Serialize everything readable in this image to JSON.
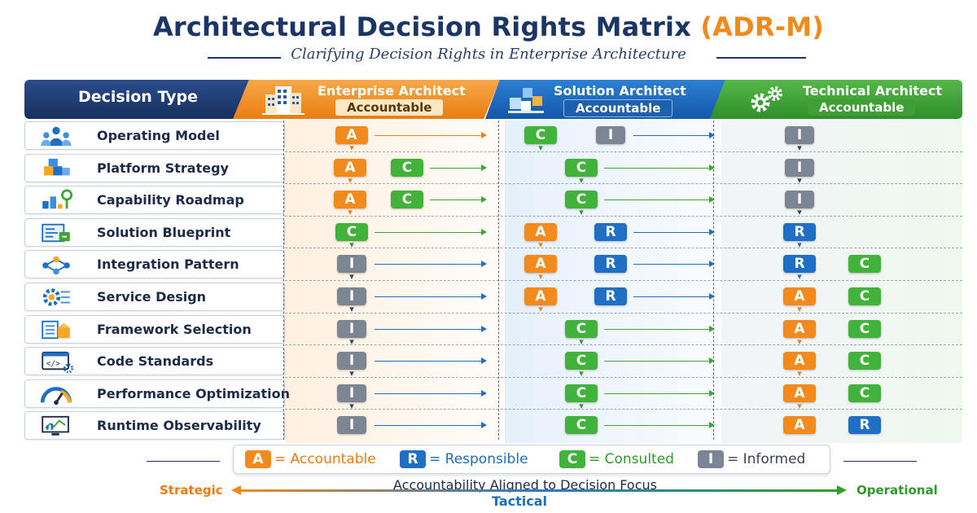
{
  "title": {
    "main": "Architectural Decision Rights Matrix",
    "acronym": "(ADR-M)"
  },
  "subtitle": "Clarifying Decision Rights in Enterprise Architecture",
  "header": {
    "decision_type": "Decision Type",
    "roles": [
      {
        "name": "Enterprise Architect",
        "tag": "Accountable",
        "icon": "office-building-icon",
        "color": "#f08a1c"
      },
      {
        "name": "Solution Architect",
        "tag": "Accountable",
        "icon": "blocks-icon",
        "color": "#1f6fc5"
      },
      {
        "name": "Technical Architect",
        "tag": "Accountable",
        "icon": "gears-icon",
        "color": "#3fa535"
      }
    ]
  },
  "rows": [
    {
      "label": "Operating Model",
      "icon": "people-network-icon",
      "cells": [
        [
          "A"
        ],
        [
          "C",
          "I"
        ],
        [
          "I"
        ]
      ]
    },
    {
      "label": "Platform Strategy",
      "icon": "cubes-icon",
      "cells": [
        [
          "A",
          "C"
        ],
        [
          "C"
        ],
        [
          "I"
        ]
      ]
    },
    {
      "label": "Capability Roadmap",
      "icon": "roadmap-pin-icon",
      "cells": [
        [
          "A",
          "C"
        ],
        [
          "C"
        ],
        [
          "I"
        ]
      ]
    },
    {
      "label": "Solution Blueprint",
      "icon": "blueprint-icon",
      "cells": [
        [
          "C"
        ],
        [
          "A",
          "R"
        ],
        [
          "R"
        ]
      ]
    },
    {
      "label": "Integration Pattern",
      "icon": "network-nodes-icon",
      "cells": [
        [
          "I"
        ],
        [
          "A",
          "R"
        ],
        [
          "R",
          "C"
        ]
      ]
    },
    {
      "label": "Service Design",
      "icon": "service-gear-icon",
      "cells": [
        [
          "I"
        ],
        [
          "A",
          "R"
        ],
        [
          "A",
          "C"
        ]
      ]
    },
    {
      "label": "Framework Selection",
      "icon": "checklist-box-icon",
      "cells": [
        [
          "I"
        ],
        [
          "C"
        ],
        [
          "A",
          "C"
        ]
      ]
    },
    {
      "label": "Code Standards",
      "icon": "code-window-icon",
      "cells": [
        [
          "I"
        ],
        [
          "C"
        ],
        [
          "A",
          "C"
        ]
      ]
    },
    {
      "label": "Performance Optimization",
      "icon": "gauge-icon",
      "cells": [
        [
          "I"
        ],
        [
          "C"
        ],
        [
          "A",
          "C"
        ]
      ]
    },
    {
      "label": "Runtime Observability",
      "icon": "monitor-chart-icon",
      "cells": [
        [
          "I"
        ],
        [
          "C"
        ],
        [
          "A",
          "R"
        ]
      ]
    }
  ],
  "legend": [
    {
      "code": "A",
      "text": "= Accountable",
      "color": "#f28a1e",
      "text_color": "#ec7a10"
    },
    {
      "code": "R",
      "text": "= Responsible",
      "color": "#1f6fc5",
      "text_color": "#1d6fb8"
    },
    {
      "code": "C",
      "text": "= Consulted",
      "color": "#42b33a",
      "text_color": "#2e9a2a"
    },
    {
      "code": "I",
      "text": "= Informed",
      "color": "#7c8593",
      "text_color": "#3a4356"
    }
  ],
  "axis": {
    "left": "Strategic",
    "caption": "Accountability Aligned to Decision Focus",
    "middle": "Tactical",
    "right": "Operational"
  }
}
